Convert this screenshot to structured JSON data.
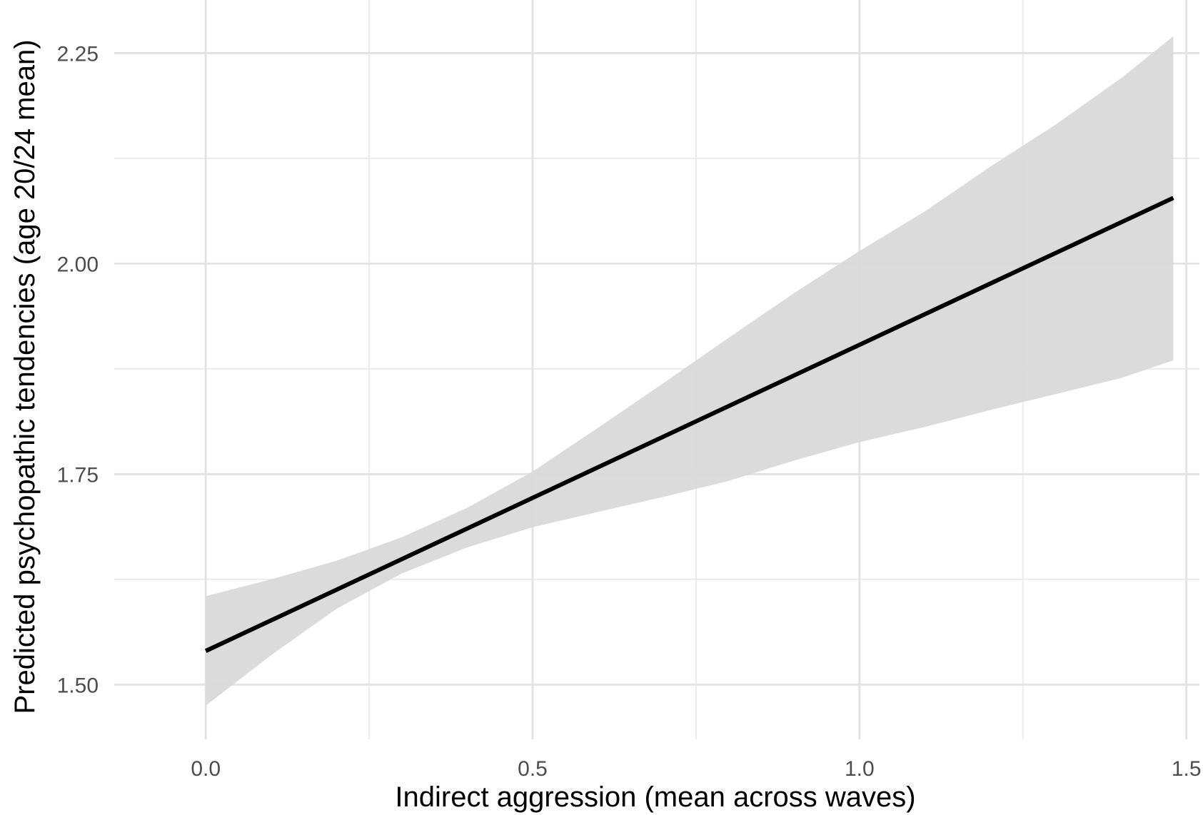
{
  "chart_data": {
    "type": "line",
    "title": "",
    "xlabel": "Indirect aggression (mean across waves)",
    "ylabel": "Predicted psychopathic tendencies (age 20/24 mean)",
    "xlim": [
      -0.14,
      1.52
    ],
    "ylim": [
      1.435,
      2.313
    ],
    "x_ticks": [
      {
        "value": 0.0,
        "label": "0.0"
      },
      {
        "value": 0.5,
        "label": "0.5"
      },
      {
        "value": 1.0,
        "label": "1.0"
      },
      {
        "value": 1.5,
        "label": "1.5"
      }
    ],
    "x_minor": [
      0.25,
      0.75,
      1.25
    ],
    "y_ticks": [
      {
        "value": 1.5,
        "label": "1.50"
      },
      {
        "value": 1.75,
        "label": "1.75"
      },
      {
        "value": 2.0,
        "label": "2.00"
      },
      {
        "value": 2.25,
        "label": "2.25"
      }
    ],
    "y_minor": [
      1.625,
      1.875,
      2.125
    ],
    "grid": true,
    "legend": "none",
    "series": [
      {
        "x": [
          0.0,
          1.48
        ],
        "y": [
          1.54,
          2.078
        ],
        "color": "#000000"
      }
    ],
    "confidence_band": {
      "color": "#d9d9d9",
      "x": [
        0.0,
        0.1,
        0.2,
        0.3,
        0.4,
        0.5,
        0.6,
        0.7,
        0.8,
        0.9,
        1.0,
        1.1,
        1.2,
        1.3,
        1.4,
        1.48
      ],
      "lower": [
        1.475,
        1.535,
        1.59,
        1.632,
        1.663,
        1.687,
        1.705,
        1.723,
        1.742,
        1.766,
        1.788,
        1.806,
        1.826,
        1.845,
        1.864,
        1.885
      ],
      "upper": [
        1.605,
        1.625,
        1.647,
        1.675,
        1.71,
        1.753,
        1.805,
        1.858,
        1.912,
        1.965,
        2.015,
        2.062,
        2.115,
        2.165,
        2.22,
        2.27
      ]
    }
  }
}
